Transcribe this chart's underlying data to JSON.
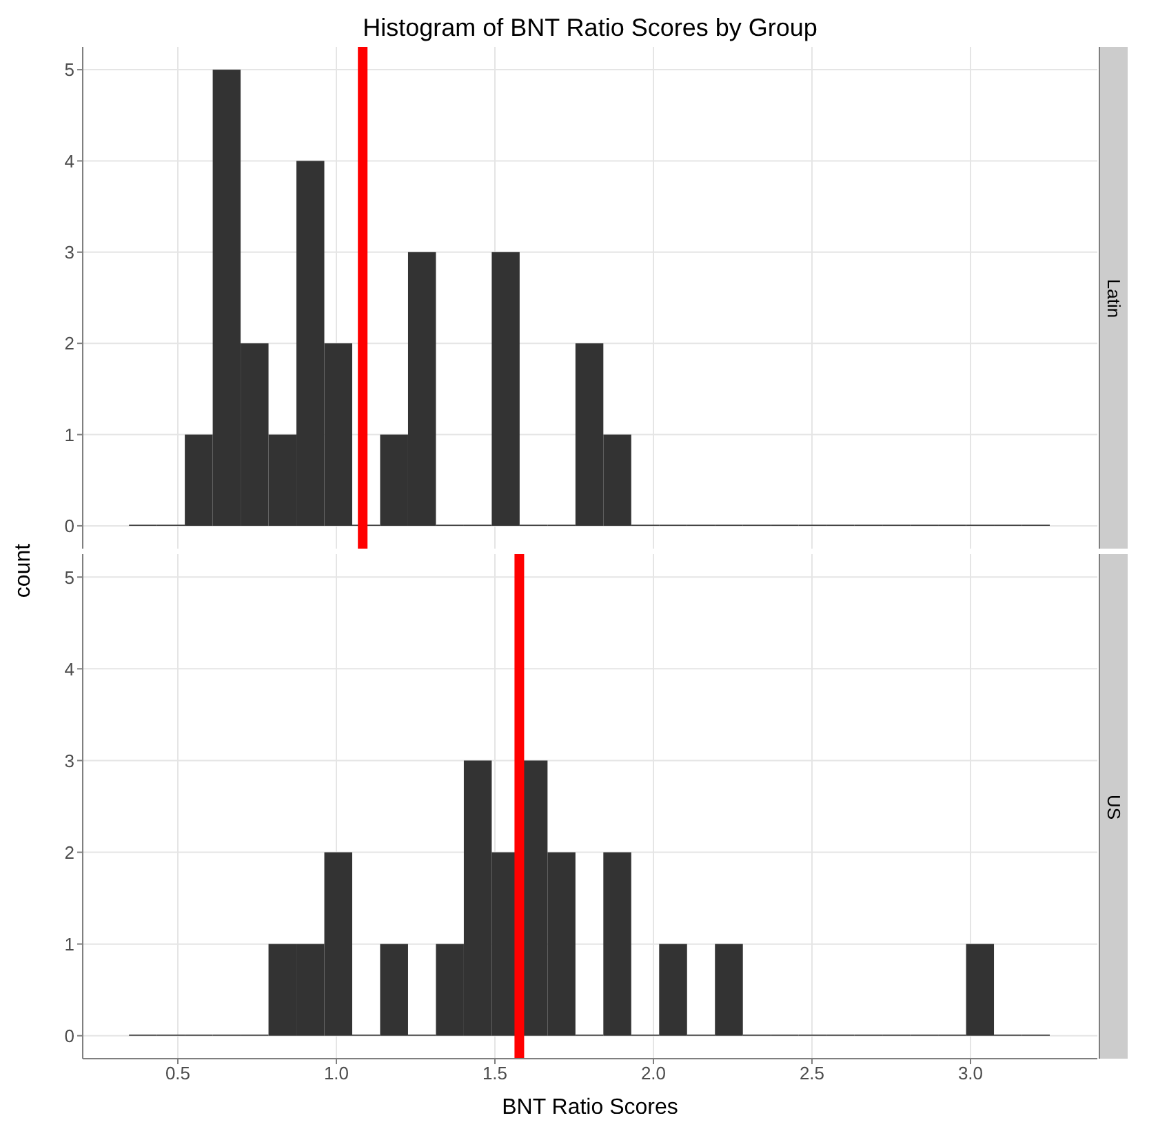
{
  "chart_data": [
    {
      "type": "histogram",
      "title": "Histogram of BNT Ratio Scores by Group",
      "subtitle": "Latin",
      "ylabel": "count",
      "color": "#333333",
      "bins": [
        0.346,
        0.434,
        0.522,
        0.61,
        0.698,
        0.786,
        0.874,
        0.962,
        1.05,
        1.138,
        1.226,
        1.314,
        1.402,
        1.49,
        1.578,
        1.666,
        1.754,
        1.842,
        1.93,
        2.018,
        2.106,
        2.194,
        2.282,
        2.37,
        2.458,
        2.546,
        2.634,
        2.722,
        2.81,
        2.898,
        2.986,
        3.074,
        3.162,
        3.25
      ],
      "values": [
        0,
        0,
        1,
        5,
        2,
        1,
        4,
        2,
        0,
        1,
        3,
        0,
        0,
        3,
        0,
        0,
        2,
        1,
        0,
        0,
        0,
        0,
        0,
        0,
        0,
        0,
        0,
        0,
        0,
        0,
        0,
        0,
        0
      ],
      "xlim": [
        0.2,
        3.4
      ],
      "xticks": [
        0.5,
        1,
        1.5,
        2,
        2.5,
        3
      ],
      "ylim": [
        -0.25,
        5.25
      ],
      "yticks": [
        0,
        1,
        2,
        3,
        4,
        5
      ],
      "grid": true,
      "tick_labels": "y",
      "ref_lines": [
        {
          "axis": "x",
          "value": 1.083,
          "color": "#ff0000"
        }
      ]
    },
    {
      "type": "histogram",
      "subtitle": "US",
      "xlabel": "BNT Ratio Scores",
      "color": "#333333",
      "bins": [
        0.346,
        0.434,
        0.522,
        0.61,
        0.698,
        0.786,
        0.874,
        0.962,
        1.05,
        1.138,
        1.226,
        1.314,
        1.402,
        1.49,
        1.578,
        1.666,
        1.754,
        1.842,
        1.93,
        2.018,
        2.106,
        2.194,
        2.282,
        2.37,
        2.458,
        2.546,
        2.634,
        2.722,
        2.81,
        2.898,
        2.986,
        3.074,
        3.162,
        3.25
      ],
      "values": [
        0,
        0,
        0,
        0,
        0,
        1,
        1,
        2,
        0,
        1,
        0,
        1,
        3,
        2,
        3,
        2,
        0,
        2,
        0,
        1,
        0,
        1,
        0,
        0,
        0,
        0,
        0,
        0,
        0,
        0,
        1,
        0,
        0
      ],
      "xlim": [
        0.2,
        3.4
      ],
      "xticks": [
        0.5,
        {
          "value": 1,
          "label": "1.0"
        },
        1.5,
        {
          "value": 2,
          "label": "2.0"
        },
        2.5,
        {
          "value": 3,
          "label": "3.0"
        }
      ],
      "ylim": [
        -0.25,
        5.25
      ],
      "yticks": [
        0,
        1,
        2,
        3,
        4,
        5
      ],
      "grid": true,
      "ref_lines": [
        {
          "axis": "x",
          "value": 1.577,
          "color": "#ff0000"
        }
      ]
    }
  ]
}
